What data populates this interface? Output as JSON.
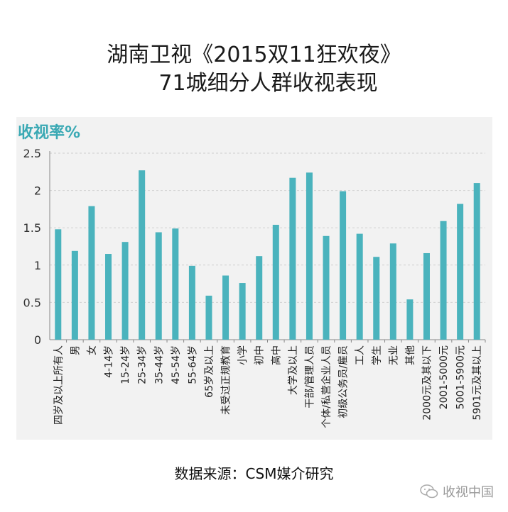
{
  "title_line1": "湖南卫视《2015双11狂欢夜》",
  "title_line2": "71城细分人群收视表现",
  "source": "数据来源：CSM媒介研究",
  "brand": "收视中国",
  "colors": {
    "bar": "#4ab3bd",
    "panel": "#f2f2f2",
    "accent": "#3aa9b4"
  },
  "chart_data": {
    "type": "bar",
    "ylabel": "收视率%",
    "ylim": [
      0,
      2.5
    ],
    "yticks": [
      "0",
      "0.5",
      "1",
      "1.5",
      "2",
      "2.5"
    ],
    "grid": true,
    "categories": [
      "四岁及以上所有人",
      "男",
      "女",
      "4-14岁",
      "15-24岁",
      "25-34岁",
      "35-44岁",
      "45-54岁",
      "55-64岁",
      "65岁及以上",
      "未受过正规教育",
      "小学",
      "初中",
      "高中",
      "大学及以上",
      "干部/管理人员",
      "个体/私营企业人员",
      "初级公务员/雇员",
      "工人",
      "学生",
      "无业",
      "其他",
      "2000元及其以下",
      "2001-5000元",
      "5001-5900元",
      "5901元及其以上"
    ],
    "values": [
      1.48,
      1.19,
      1.79,
      1.15,
      1.31,
      2.27,
      1.44,
      1.49,
      0.99,
      0.59,
      0.86,
      0.76,
      1.12,
      1.54,
      2.17,
      2.24,
      1.39,
      1.99,
      1.42,
      1.11,
      1.29,
      0.54,
      1.16,
      1.59,
      1.82,
      2.1
    ]
  }
}
